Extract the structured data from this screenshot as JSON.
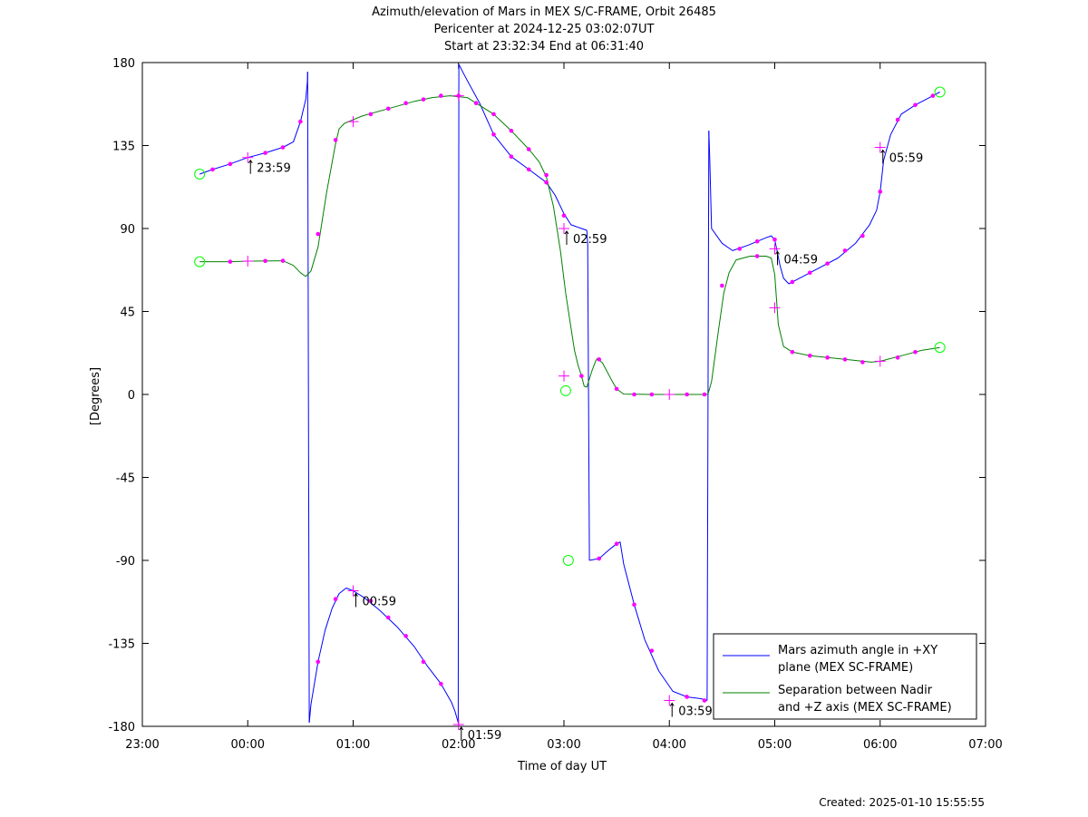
{
  "chart_data": {
    "type": "line",
    "title_lines": [
      "Azimuth/elevation of Mars in MEX S/C-FRAME,  Orbit 26485",
      "Pericenter at 2024-12-25 03:02:07UT",
      "Start at 23:32:34 End at 06:31:40"
    ],
    "xlabel": "Time of day UT",
    "ylabel": "[Degrees]",
    "xlim": [
      -60,
      420
    ],
    "ylim": [
      -180,
      180
    ],
    "x_ticks": [
      {
        "v": -60,
        "label": "23:00"
      },
      {
        "v": 0,
        "label": "00:00"
      },
      {
        "v": 60,
        "label": "01:00"
      },
      {
        "v": 120,
        "label": "02:00"
      },
      {
        "v": 180,
        "label": "03:00"
      },
      {
        "v": 240,
        "label": "04:00"
      },
      {
        "v": 300,
        "label": "05:00"
      },
      {
        "v": 360,
        "label": "06:00"
      },
      {
        "v": 420,
        "label": "07:00"
      }
    ],
    "y_ticks": [
      {
        "v": 180,
        "label": "180"
      },
      {
        "v": 135,
        "label": "135"
      },
      {
        "v": 90,
        "label": "90"
      },
      {
        "v": 45,
        "label": "45"
      },
      {
        "v": 0,
        "label": "0"
      },
      {
        "v": -45,
        "label": "-45"
      },
      {
        "v": -90,
        "label": "-90"
      },
      {
        "v": -135,
        "label": "-135"
      },
      {
        "v": -180,
        "label": "-180"
      }
    ],
    "legend_position": "bottom-right",
    "series": [
      {
        "name": "Mars azimuth angle in +XY plane (MEX SC-FRAME)",
        "legend_lines": [
          "Mars azimuth angle in +XY",
          "plane (MEX SC-FRAME)"
        ],
        "color": "#0000ff",
        "segments": [
          [
            [
              -27.4,
              119.5
            ],
            [
              -20,
              122
            ],
            [
              -10,
              125
            ],
            [
              0,
              128.5
            ],
            [
              10,
              131
            ],
            [
              20,
              134
            ],
            [
              26,
              137
            ],
            [
              30,
              148
            ],
            [
              33,
              160
            ],
            [
              34,
              170
            ],
            [
              34.1,
              175
            ]
          ],
          [
            [
              35,
              -178
            ],
            [
              36,
              -168
            ],
            [
              40,
              -145
            ],
            [
              44,
              -128
            ],
            [
              48,
              -116
            ],
            [
              52,
              -108
            ],
            [
              56,
              -105
            ],
            [
              60,
              -106.5
            ],
            [
              66,
              -110
            ],
            [
              75,
              -117
            ],
            [
              85,
              -126
            ],
            [
              95,
              -137
            ],
            [
              102,
              -147
            ],
            [
              110,
              -157
            ],
            [
              116,
              -167
            ],
            [
              118,
              -172
            ],
            [
              119.8,
              -178
            ]
          ],
          [
            [
              120.2,
              179
            ],
            [
              124,
              172
            ],
            [
              132,
              158
            ],
            [
              140,
              141
            ],
            [
              150,
              129
            ],
            [
              160,
              122
            ],
            [
              170,
              115
            ],
            [
              175,
              108
            ],
            [
              180,
              98
            ],
            [
              184,
              92
            ],
            [
              190,
              90
            ],
            [
              193,
              89
            ],
            [
              193.5,
              82
            ]
          ],
          [
            [
              194.5,
              -90
            ],
            [
              200,
              -89
            ],
            [
              206,
              -84
            ],
            [
              210,
              -81
            ],
            [
              212,
              -80
            ],
            [
              214,
              -92
            ],
            [
              220,
              -114
            ],
            [
              226,
              -133
            ],
            [
              234,
              -150
            ],
            [
              242,
              -161
            ],
            [
              250,
              -164
            ],
            [
              258,
              -165
            ],
            [
              261.5,
              -166
            ]
          ],
          [
            [
              262.5,
              143
            ],
            [
              263,
              128
            ],
            [
              264,
              90
            ],
            [
              270,
              82
            ],
            [
              276,
              78
            ],
            [
              285,
              81
            ],
            [
              295,
              85
            ],
            [
              298,
              86
            ],
            [
              300,
              84
            ],
            [
              303,
              70
            ],
            [
              305,
              63
            ],
            [
              308,
              60
            ],
            [
              312,
              62
            ],
            [
              322,
              67
            ],
            [
              336,
              74
            ],
            [
              346,
              82
            ],
            [
              354,
              92
            ],
            [
              358,
              100
            ],
            [
              360,
              110
            ],
            [
              362,
              127
            ],
            [
              366,
              141
            ],
            [
              372,
              152
            ],
            [
              380,
              157
            ],
            [
              390,
              162
            ],
            [
              394,
              164
            ]
          ]
        ],
        "jumps": [
          [
            [
              34.1,
              175
            ],
            [
              35,
              -178
            ]
          ],
          [
            [
              119.8,
              -178
            ],
            [
              120.2,
              179
            ]
          ],
          [
            [
              193.5,
              82
            ],
            [
              194.5,
              -90
            ]
          ],
          [
            [
              261.5,
              -166
            ],
            [
              262.5,
              143
            ]
          ]
        ],
        "markers": [
          [
            -20,
            122
          ],
          [
            -10,
            125
          ],
          [
            10,
            131
          ],
          [
            20,
            134
          ],
          [
            30,
            148
          ],
          [
            40,
            -145
          ],
          [
            50,
            -111
          ],
          [
            70,
            -112
          ],
          [
            80,
            -121
          ],
          [
            90,
            -131
          ],
          [
            100,
            -145
          ],
          [
            110,
            -157
          ],
          [
            140,
            141
          ],
          [
            150,
            129
          ],
          [
            160,
            122
          ],
          [
            170,
            115
          ],
          [
            180,
            97
          ],
          [
            200,
            -89
          ],
          [
            210,
            -81
          ],
          [
            220,
            -114
          ],
          [
            230,
            -139
          ],
          [
            250,
            -164
          ],
          [
            260,
            -166
          ],
          [
            280,
            79
          ],
          [
            290,
            83
          ],
          [
            300,
            84
          ],
          [
            310,
            61
          ],
          [
            320,
            66
          ],
          [
            330,
            71
          ],
          [
            340,
            78
          ],
          [
            350,
            86
          ],
          [
            360,
            110
          ],
          [
            370,
            149
          ],
          [
            380,
            157
          ],
          [
            390,
            162
          ]
        ],
        "hour_crosses": [
          [
            0,
            128.5
          ],
          [
            60,
            -106.5
          ],
          [
            120,
            -179
          ],
          [
            180,
            90
          ],
          [
            240,
            -166
          ],
          [
            300,
            79
          ],
          [
            360,
            134
          ]
        ],
        "circles": [
          [
            -27.4,
            119.5
          ],
          [
            394,
            164
          ],
          [
            182.5,
            -90
          ]
        ],
        "hour_labels": [
          {
            "x": 0,
            "y": 128.5,
            "label": "23:59"
          },
          {
            "x": 60,
            "y": -106.5,
            "label": "00:59"
          },
          {
            "x": 120,
            "y": -179,
            "label": "01:59"
          },
          {
            "x": 180,
            "y": 90,
            "label": "02:59"
          },
          {
            "x": 240,
            "y": -166,
            "label": "03:59"
          },
          {
            "x": 360,
            "y": 134,
            "label": "05:59"
          }
        ]
      },
      {
        "name": "Separation between Nadir and +Z axis (MEX SC-FRAME)",
        "legend_lines": [
          "Separation between Nadir",
          "and +Z axis (MEX SC-FRAME)"
        ],
        "color": "#008000",
        "segments": [
          [
            [
              -27.4,
              72
            ],
            [
              -10,
              72
            ],
            [
              0,
              72.3
            ],
            [
              20,
              72.5
            ],
            [
              26,
              70
            ],
            [
              30,
              66
            ],
            [
              33,
              64
            ],
            [
              36,
              67
            ],
            [
              40,
              80
            ],
            [
              45,
              110
            ],
            [
              50,
              136
            ],
            [
              52,
              144
            ],
            [
              55,
              147
            ],
            [
              65,
              151
            ],
            [
              80,
              155
            ],
            [
              95,
              159
            ],
            [
              105,
              161
            ],
            [
              115,
              162
            ],
            [
              125,
              161
            ],
            [
              130,
              158
            ],
            [
              140,
              152
            ],
            [
              150,
              143
            ],
            [
              160,
              133
            ],
            [
              166,
              126
            ],
            [
              170,
              118
            ],
            [
              174,
              102
            ],
            [
              178,
              78
            ],
            [
              181,
              55
            ],
            [
              184,
              36
            ],
            [
              186,
              24
            ],
            [
              188,
              16
            ],
            [
              190,
              10
            ],
            [
              191.5,
              4.5
            ],
            [
              193,
              4
            ],
            [
              196,
              13
            ],
            [
              198,
              18
            ],
            [
              199,
              19.5
            ],
            [
              202,
              17
            ],
            [
              207,
              8
            ],
            [
              210,
              3
            ],
            [
              214,
              0.2
            ],
            [
              230,
              0
            ],
            [
              250,
              0
            ],
            [
              260,
              0
            ],
            [
              262,
              0.2
            ],
            [
              264,
              7
            ],
            [
              268,
              35
            ],
            [
              271,
              55
            ],
            [
              274,
              66
            ],
            [
              278,
              73
            ],
            [
              286,
              75
            ],
            [
              295,
              75
            ],
            [
              298,
              74
            ],
            [
              300,
              65
            ],
            [
              302,
              38
            ],
            [
              305,
              26
            ],
            [
              310,
              23
            ],
            [
              320,
              21
            ],
            [
              335,
              19.5
            ],
            [
              355,
              17.5
            ],
            [
              360,
              18
            ],
            [
              374,
              21.5
            ],
            [
              384,
              24
            ],
            [
              394,
              25.5
            ]
          ]
        ],
        "markers": [
          [
            -10,
            72
          ],
          [
            10,
            72.4
          ],
          [
            20,
            72.5
          ],
          [
            40,
            87
          ],
          [
            50,
            138
          ],
          [
            70,
            152
          ],
          [
            80,
            155
          ],
          [
            90,
            158
          ],
          [
            100,
            160
          ],
          [
            110,
            162
          ],
          [
            120,
            162
          ],
          [
            130,
            158
          ],
          [
            140,
            152
          ],
          [
            150,
            143
          ],
          [
            160,
            133
          ],
          [
            170,
            119
          ],
          [
            190,
            10
          ],
          [
            200,
            19
          ],
          [
            210,
            3
          ],
          [
            220,
            0
          ],
          [
            230,
            0
          ],
          [
            250,
            0
          ],
          [
            260,
            0
          ],
          [
            270,
            59
          ],
          [
            290,
            75
          ],
          [
            310,
            23
          ],
          [
            320,
            21
          ],
          [
            330,
            20
          ],
          [
            340,
            19
          ],
          [
            350,
            17.5
          ],
          [
            370,
            20
          ],
          [
            380,
            23
          ]
        ],
        "hour_crosses": [
          [
            0,
            72.3
          ],
          [
            60,
            148
          ],
          [
            120,
            162
          ],
          [
            180,
            10
          ],
          [
            240,
            0
          ],
          [
            300,
            47
          ],
          [
            360,
            18
          ]
        ],
        "circles": [
          [
            -27.4,
            72
          ],
          [
            394,
            25.5
          ],
          [
            181,
            2
          ]
        ],
        "hour_labels": [
          {
            "x": 300,
            "y": 79,
            "label": "04:59"
          }
        ]
      }
    ]
  },
  "footer": {
    "created": "Created: 2025-01-10 15:55:55"
  }
}
